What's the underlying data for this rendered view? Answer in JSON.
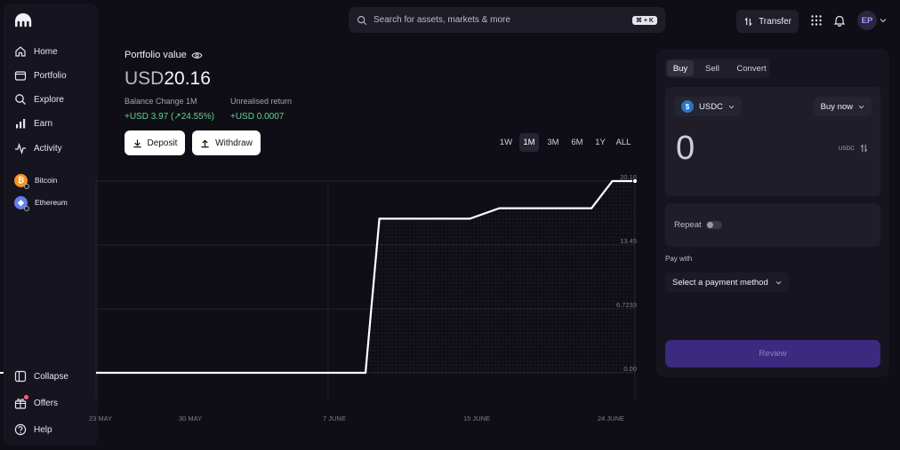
{
  "app": {
    "logo_icon": "kraken-logo-icon"
  },
  "sidebar": {
    "items": [
      {
        "label": "Home",
        "icon": "home-icon"
      },
      {
        "label": "Portfolio",
        "icon": "wallet-icon"
      },
      {
        "label": "Explore",
        "icon": "search-icon"
      },
      {
        "label": "Earn",
        "icon": "bar-chart-icon"
      },
      {
        "label": "Activity",
        "icon": "pulse-icon"
      }
    ],
    "assets": [
      {
        "label": "Bitcoin",
        "icon": "bitcoin-icon",
        "color": "#f7931a"
      },
      {
        "label": "Ethereum",
        "icon": "ethereum-icon",
        "color": "#627eea"
      }
    ],
    "bottom": [
      {
        "label": "Collapse",
        "icon": "collapse-icon"
      },
      {
        "label": "Offers",
        "icon": "gift-icon"
      },
      {
        "label": "Help",
        "icon": "help-icon"
      }
    ]
  },
  "header": {
    "search_placeholder": "Search for assets, markets & more",
    "search_shortcut": "⌘ + K",
    "transfer_label": "Transfer",
    "avatar_initials": "EP"
  },
  "portfolio": {
    "label": "Portfolio value",
    "currency": "USD",
    "value": "20.16",
    "balance_change_label": "Balance Change 1M",
    "balance_change_amount": "+USD 3.97 (",
    "balance_change_pct": "24.55%)",
    "unrealised_label": "Unrealised return",
    "unrealised_value": "+USD 0.0007",
    "deposit_label": "Deposit",
    "withdraw_label": "Withdraw"
  },
  "ranges": [
    "1W",
    "1M",
    "3M",
    "6M",
    "1Y",
    "ALL"
  ],
  "active_range": "1M",
  "chart_data": {
    "type": "line",
    "x": [
      "23 MAY",
      "30 MAY",
      "7 JUNE",
      "15 JUNE",
      "24 JUNE"
    ],
    "y_ticks": [
      "0.00",
      "6.7233",
      "13.45",
      "20.16"
    ],
    "ylim": [
      0,
      20.16
    ],
    "series": [
      {
        "points": [
          {
            "x": 0.0,
            "y": 0
          },
          {
            "x": 15.5,
            "y": 0
          },
          {
            "x": 16.3,
            "y": 16.2
          },
          {
            "x": 21.5,
            "y": 16.2
          },
          {
            "x": 23.2,
            "y": 17.3
          },
          {
            "x": 28.5,
            "y": 17.3
          },
          {
            "x": 29.7,
            "y": 20.16
          },
          {
            "x": 31.0,
            "y": 20.16
          }
        ]
      }
    ],
    "grid": true
  },
  "trade": {
    "tabs": [
      "Buy",
      "Sell",
      "Convert"
    ],
    "active_tab": "Buy",
    "asset": "USDC",
    "order_type": "Buy now",
    "amount": "0",
    "amount_unit": "USDC",
    "repeat_label": "Repeat",
    "pay_with_label": "Pay with",
    "payment_method": "Select a payment method",
    "review_label": "Review"
  }
}
